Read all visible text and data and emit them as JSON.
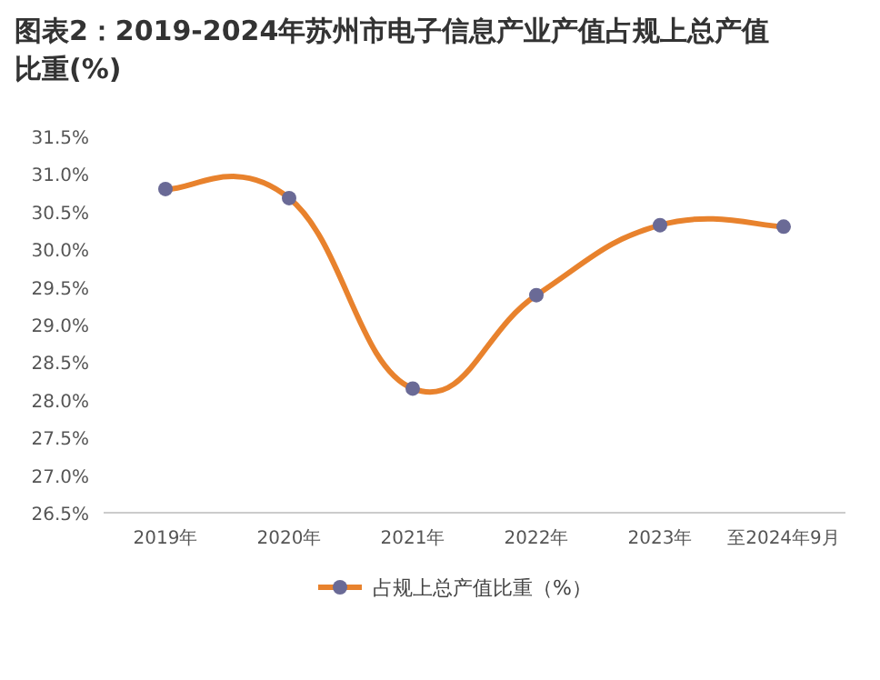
{
  "chart_data": {
    "type": "line",
    "title": "图表2：2019-2024年苏州市电子信息产业产值占规上总产值比重(%)",
    "categories": [
      "2019年",
      "2020年",
      "2021年",
      "2022年",
      "2023年",
      "至2024年9月"
    ],
    "series": [
      {
        "name": "占规上总产值比重（%）",
        "color": "#e8822d",
        "values": [
          30.8,
          30.68,
          28.15,
          29.39,
          30.32,
          30.3
        ]
      }
    ],
    "ylim": [
      26.5,
      31.5
    ],
    "yticks": [
      {
        "value": 26.5,
        "label": "26.5%"
      },
      {
        "value": 27.0,
        "label": "27.0%"
      },
      {
        "value": 27.5,
        "label": "27.5%"
      },
      {
        "value": 28.0,
        "label": "28.0%"
      },
      {
        "value": 28.5,
        "label": "28.5%"
      },
      {
        "value": 29.0,
        "label": "29.0%"
      },
      {
        "value": 29.5,
        "label": "29.5%"
      },
      {
        "value": 30.0,
        "label": "30.0%"
      },
      {
        "value": 30.5,
        "label": "30.5%"
      },
      {
        "value": 31.0,
        "label": "31.0%"
      },
      {
        "value": 31.5,
        "label": "31.5%"
      }
    ],
    "legend": "bottom",
    "marker": "circle"
  }
}
